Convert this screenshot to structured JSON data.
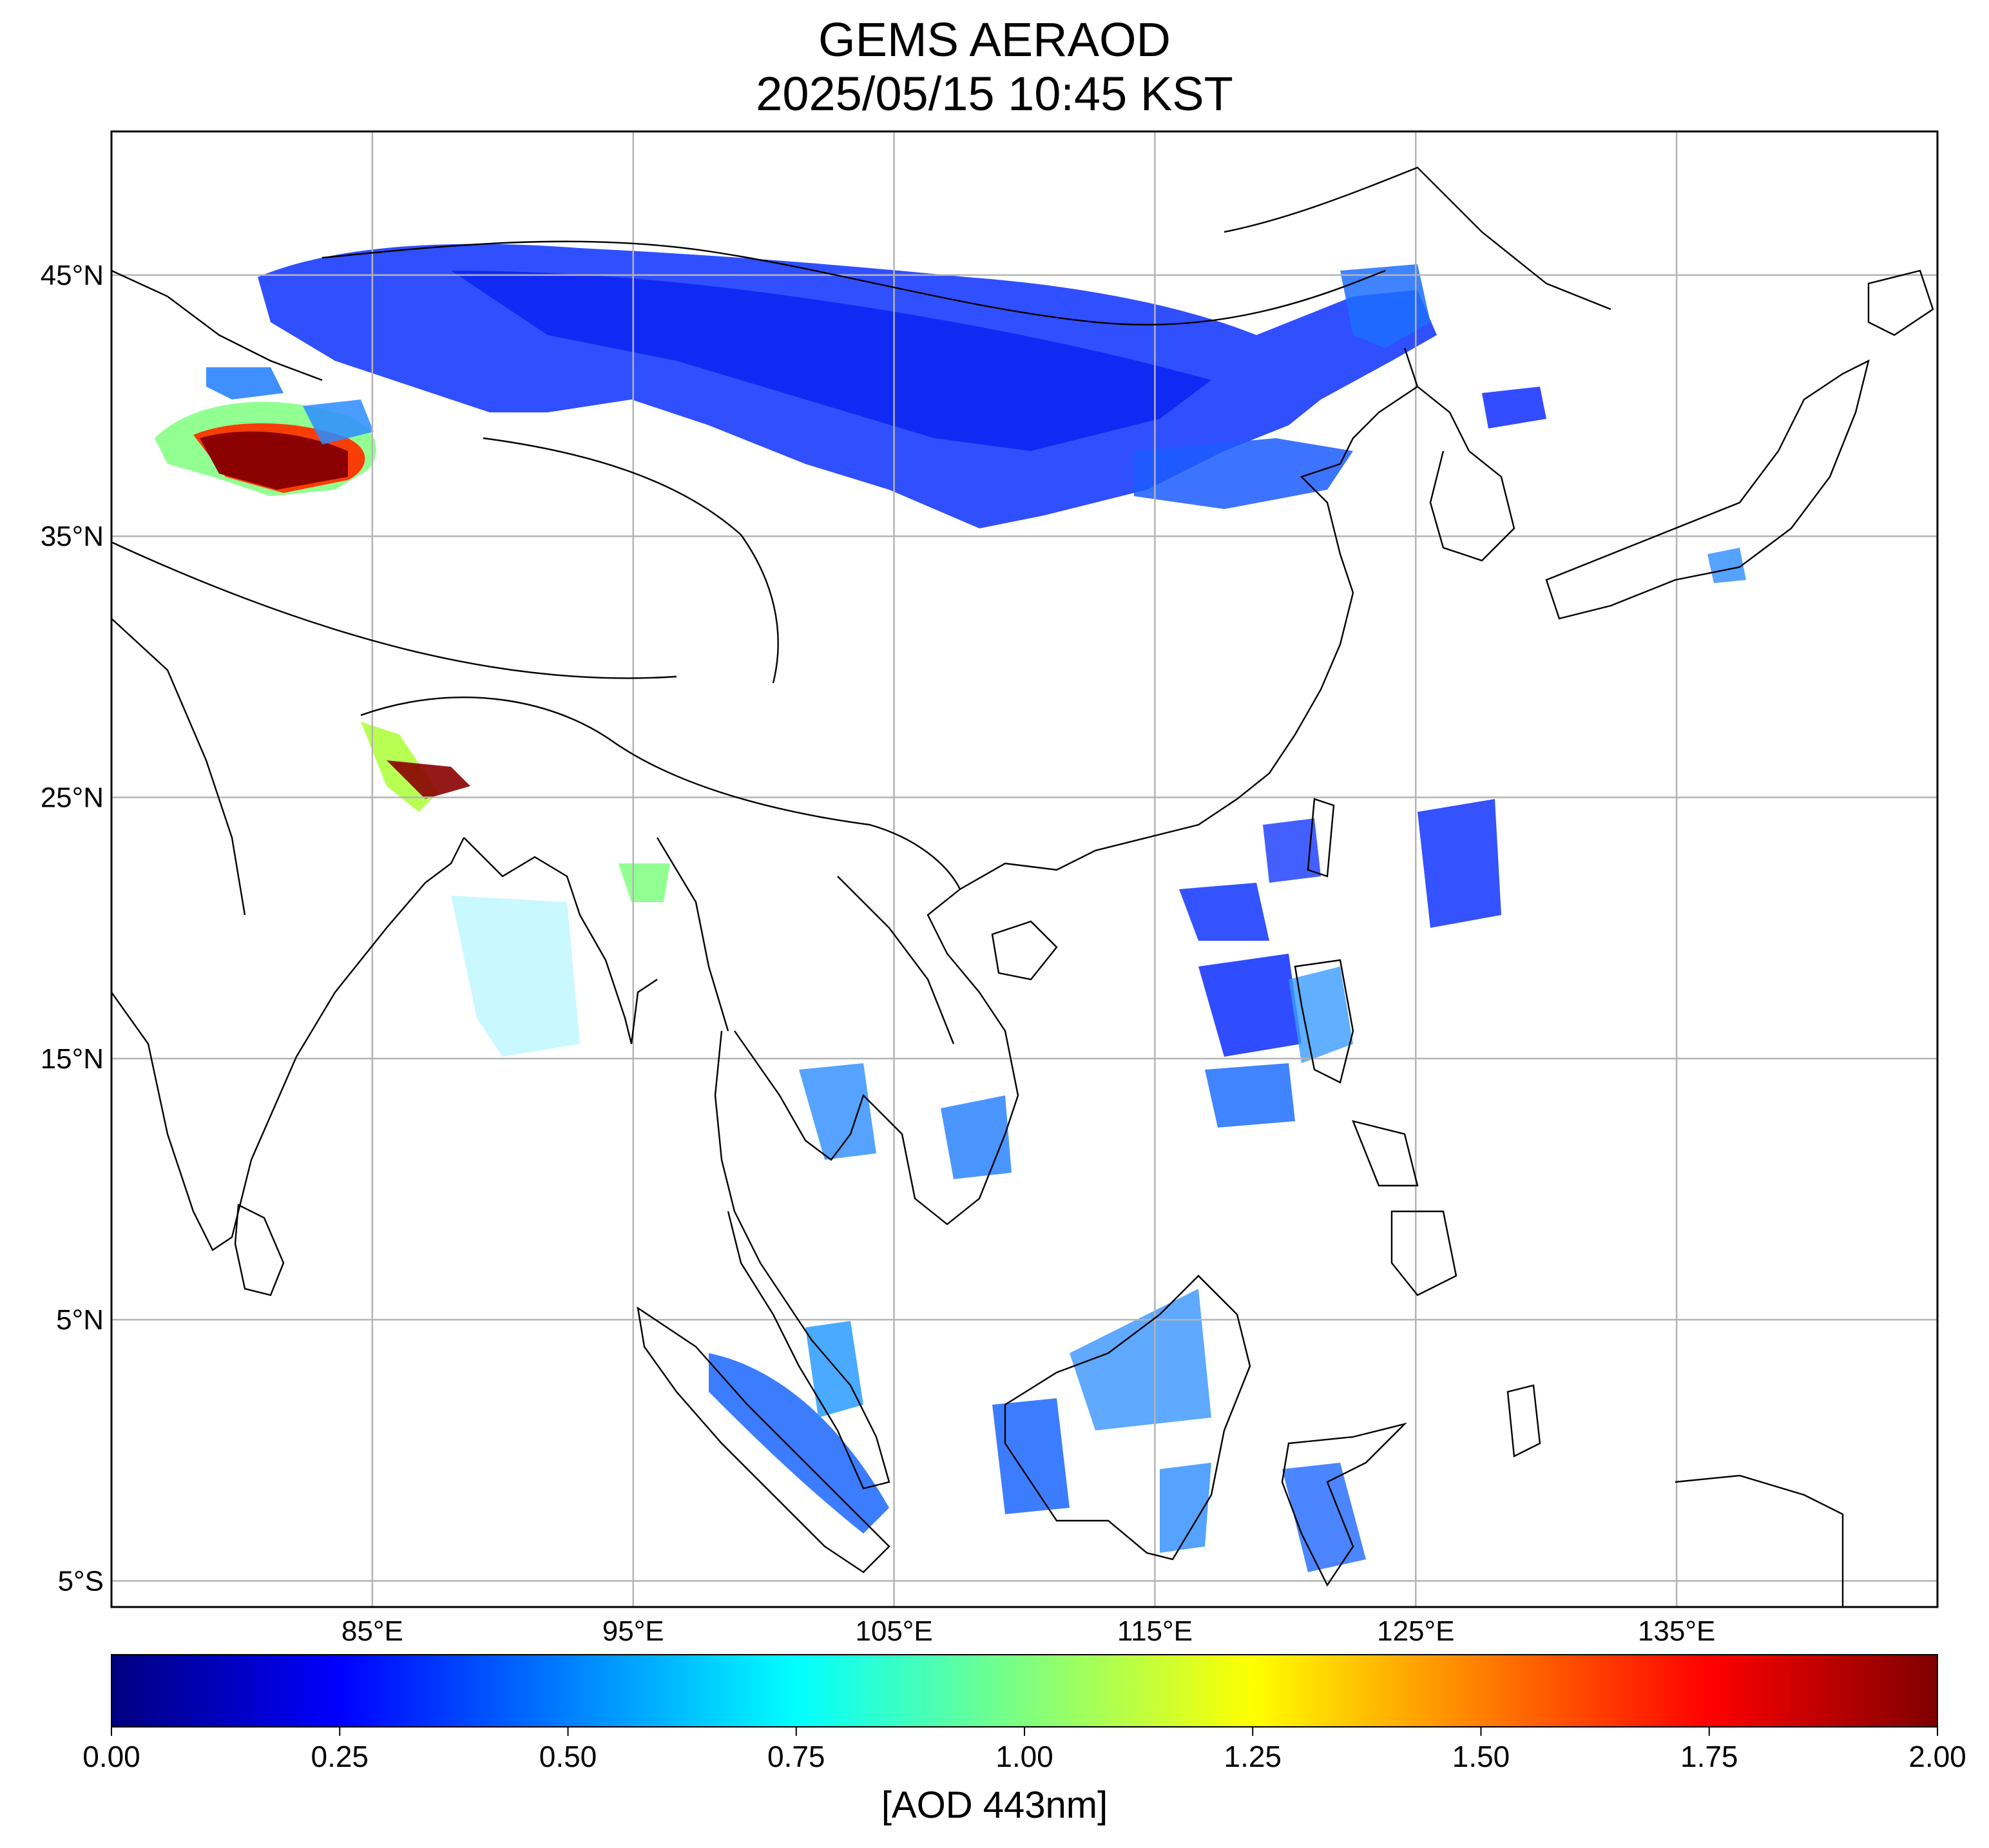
{
  "title": "GEMS AERAOD",
  "subtitle": "2025/05/15 10:45 KST",
  "map": {
    "lon_range": [
      75,
      145
    ],
    "lat_range": [
      -6,
      50.5
    ],
    "lat_ticks": [
      {
        "value": 45,
        "label": "45°N"
      },
      {
        "value": 35,
        "label": "35°N"
      },
      {
        "value": 25,
        "label": "25°N"
      },
      {
        "value": 15,
        "label": "15°N"
      },
      {
        "value": 5,
        "label": "5°N"
      },
      {
        "value": -5,
        "label": "5°S"
      }
    ],
    "lon_ticks": [
      {
        "value": 85,
        "label": "85°E"
      },
      {
        "value": 95,
        "label": "95°E"
      },
      {
        "value": 105,
        "label": "105°E"
      },
      {
        "value": 115,
        "label": "115°E"
      },
      {
        "value": 125,
        "label": "125°E"
      },
      {
        "value": 135,
        "label": "135°E"
      }
    ],
    "grid": true,
    "colors": {
      "grid": "#b4b4b4",
      "coast": "#000000",
      "frame": "#000000"
    }
  },
  "colorbar": {
    "min": 0.0,
    "max": 2.0,
    "ticks": [
      "0.00",
      "0.25",
      "0.50",
      "0.75",
      "1.00",
      "1.25",
      "1.50",
      "1.75",
      "2.00"
    ],
    "label": "[AOD 443nm]",
    "colormap": "jet",
    "stops": [
      "#00007f",
      "#0000ff",
      "#007fff",
      "#00ffff",
      "#7fff7f",
      "#ffff00",
      "#ff7f00",
      "#ff0000",
      "#7f0000"
    ]
  }
}
